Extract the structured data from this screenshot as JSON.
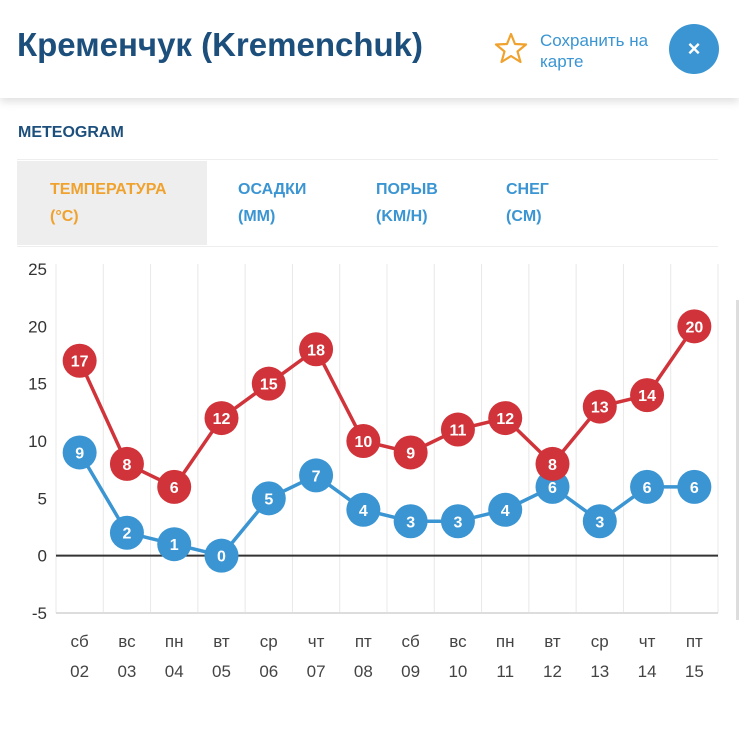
{
  "header": {
    "title": "Кременчук (Kremenchuk)",
    "save_label": "Сохранить на карте",
    "close_label": "×",
    "star_icon": "star-outline-icon",
    "star_color": "#f0a22e"
  },
  "section_title": "METEOGRAM",
  "tabs": [
    {
      "line1": "ТЕМПЕРАТУРА",
      "line2": "(°C)",
      "active": true
    },
    {
      "line1": "ОСАДКИ",
      "line2": "(MM)",
      "active": false
    },
    {
      "line1": "ПОРЫВ",
      "line2": "(KM/H)",
      "active": false
    },
    {
      "line1": "СНЕГ",
      "line2": "(CM)",
      "active": false
    }
  ],
  "chart_data": {
    "type": "line",
    "categories": [
      [
        "сб",
        "02"
      ],
      [
        "вс",
        "03"
      ],
      [
        "пн",
        "04"
      ],
      [
        "вт",
        "05"
      ],
      [
        "ср",
        "06"
      ],
      [
        "чт",
        "07"
      ],
      [
        "пт",
        "08"
      ],
      [
        "сб",
        "09"
      ],
      [
        "вс",
        "10"
      ],
      [
        "пн",
        "11"
      ],
      [
        "вт",
        "12"
      ],
      [
        "ср",
        "13"
      ],
      [
        "чт",
        "14"
      ],
      [
        "пт",
        "15"
      ]
    ],
    "series": [
      {
        "values": [
          17,
          8,
          6,
          12,
          15,
          18,
          10,
          9,
          11,
          12,
          8,
          13,
          14,
          20
        ],
        "color": "#d0343a"
      },
      {
        "values": [
          9,
          2,
          1,
          0,
          5,
          7,
          4,
          3,
          3,
          4,
          6,
          3,
          6,
          6
        ],
        "color": "#3a95d2"
      }
    ],
    "ylim": [
      -5,
      25
    ],
    "yticks": [
      "25",
      "20",
      "15",
      "10",
      "5",
      "0",
      "-5"
    ],
    "grid": "vertical",
    "zero_line": true
  }
}
